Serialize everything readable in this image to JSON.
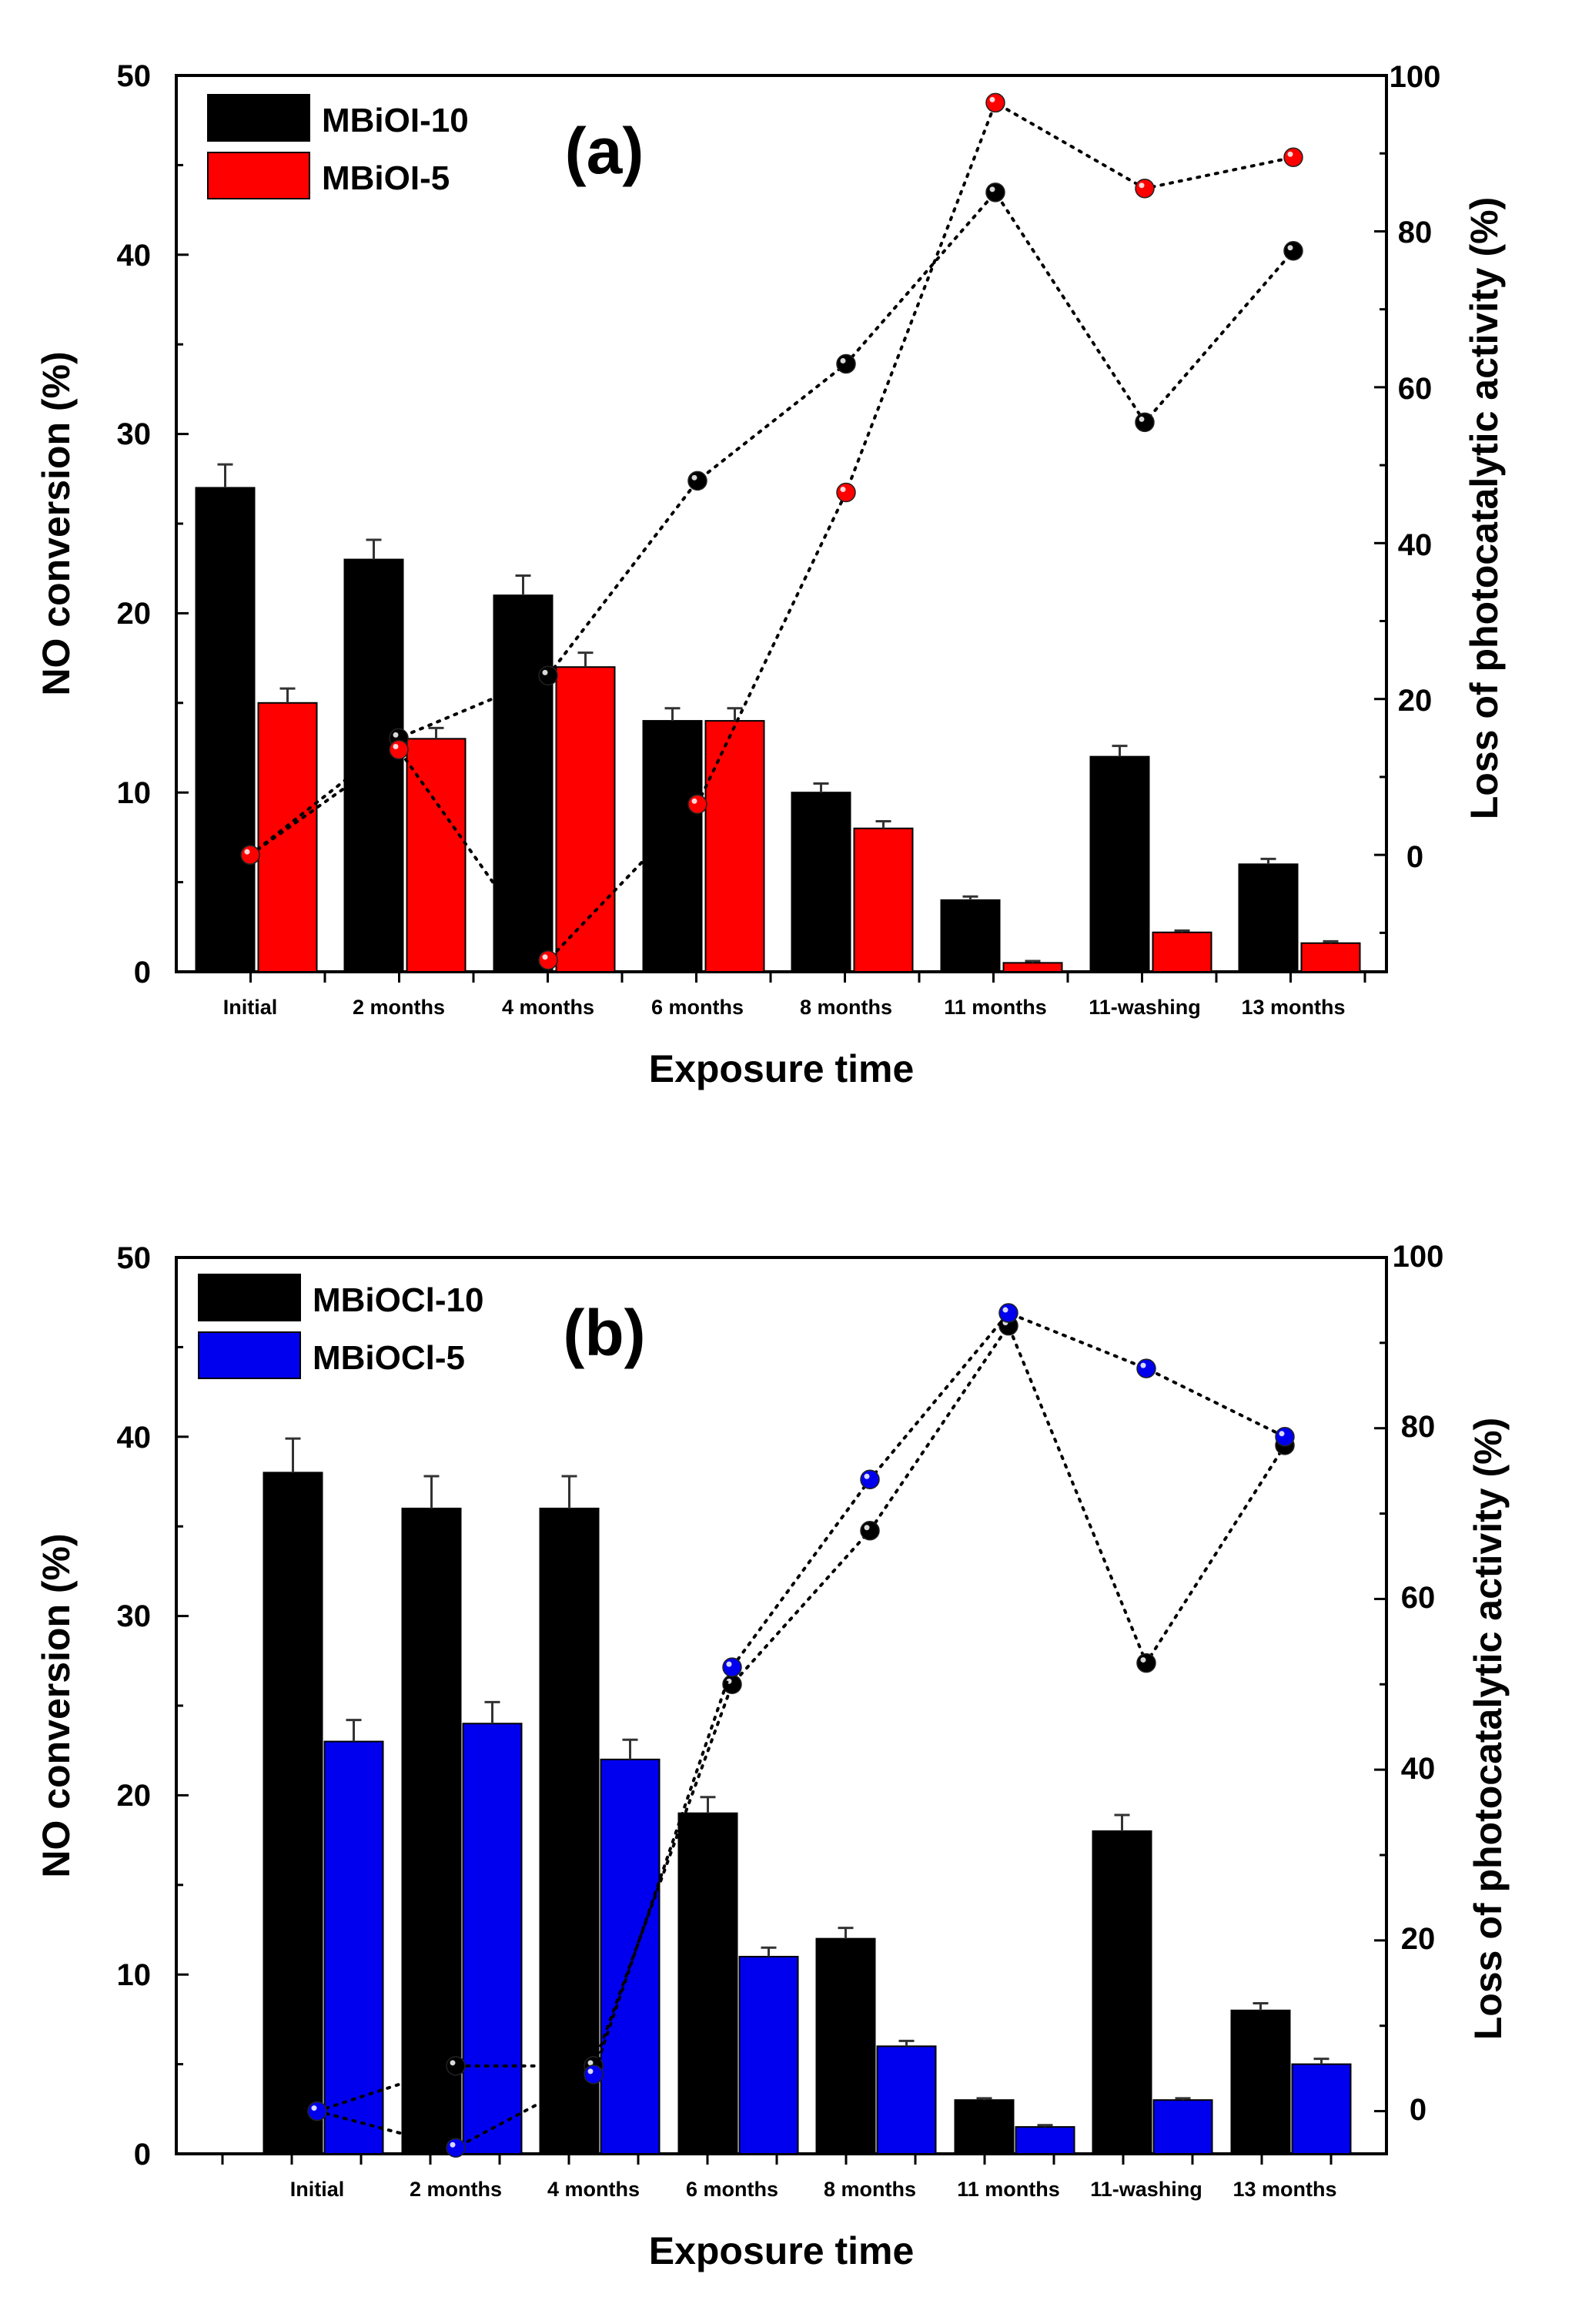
{
  "chart_data": [
    {
      "type": "bar",
      "panel_label": "(a)",
      "title": "",
      "xlabel": "Exposure time",
      "ylabel": "NO conversion (%)",
      "y2label": "Loss of photocatalytic activity (%)",
      "ylim": [
        0,
        50
      ],
      "y2lim": [
        -15,
        100
      ],
      "yticks": [
        "0",
        "10",
        "20",
        "30",
        "40",
        "50"
      ],
      "y2ticks": [
        "0",
        "20",
        "40",
        "60",
        "80",
        "100"
      ],
      "categories": [
        "Initial",
        "2 months",
        "4 months",
        "6 months",
        "8 months",
        "11 months",
        "11-washing",
        "13 months"
      ],
      "series": [
        {
          "name": "MBiOI-10",
          "color": "#000000",
          "values": [
            27,
            23,
            21,
            14,
            10,
            4,
            12,
            6
          ],
          "errors": [
            1.3,
            1.1,
            1.1,
            0.7,
            0.5,
            0.2,
            0.6,
            0.3
          ]
        },
        {
          "name": "MBiOI-5",
          "color": "#ff0000",
          "values": [
            15,
            13,
            17,
            14,
            8,
            0.5,
            2.2,
            1.6
          ],
          "errors": [
            0.8,
            0.6,
            0.8,
            0.7,
            0.4,
            0.1,
            0.1,
            0.1
          ]
        }
      ],
      "line_series": [
        {
          "name": "MBiOI-10 loss",
          "color": "#000000",
          "values": [
            0,
            15,
            23,
            48,
            63,
            85,
            55.5,
            77.5
          ]
        },
        {
          "name": "MBiOI-5 loss",
          "color": "#ff0000",
          "values": [
            0,
            13.5,
            -13.5,
            6.5,
            46.5,
            96.5,
            85.5,
            89.5
          ]
        }
      ],
      "legend_position": "top-left"
    },
    {
      "type": "bar",
      "panel_label": "(b)",
      "title": "",
      "xlabel": "Exposure time",
      "ylabel": "NO conversion (%)",
      "y2label": "Loss of photocatalytic activity (%)",
      "ylim": [
        0,
        50
      ],
      "y2lim": [
        -5,
        100
      ],
      "yticks": [
        "0",
        "10",
        "20",
        "30",
        "40",
        "50"
      ],
      "y2ticks": [
        "0",
        "20",
        "40",
        "60",
        "80",
        "100"
      ],
      "categories": [
        "Initial",
        "2 months",
        "4 months",
        "6 months",
        "8 months",
        "11 months",
        "11-washing",
        "13 months"
      ],
      "series": [
        {
          "name": "MBiOCl-10",
          "color": "#000000",
          "values": [
            38,
            36,
            36,
            19,
            12,
            3,
            18,
            8
          ],
          "errors": [
            1.9,
            1.8,
            1.8,
            0.9,
            0.6,
            0.1,
            0.9,
            0.4
          ]
        },
        {
          "name": "MBiOCl-5",
          "color": "#0000ee",
          "values": [
            23,
            24,
            22,
            11,
            6,
            1.5,
            3,
            5
          ],
          "errors": [
            1.2,
            1.2,
            1.1,
            0.5,
            0.3,
            0.1,
            0.1,
            0.3
          ]
        }
      ],
      "line_series": [
        {
          "name": "MBiOCl-10 loss",
          "color": "#000000",
          "values": [
            0,
            5.3,
            5.3,
            50,
            68,
            92,
            52.5,
            78
          ]
        },
        {
          "name": "MBiOCl-5 loss",
          "color": "#0000ee",
          "values": [
            0,
            -4.3,
            4.3,
            52,
            74,
            93.5,
            87,
            79
          ]
        }
      ],
      "legend_position": "top-left"
    }
  ]
}
